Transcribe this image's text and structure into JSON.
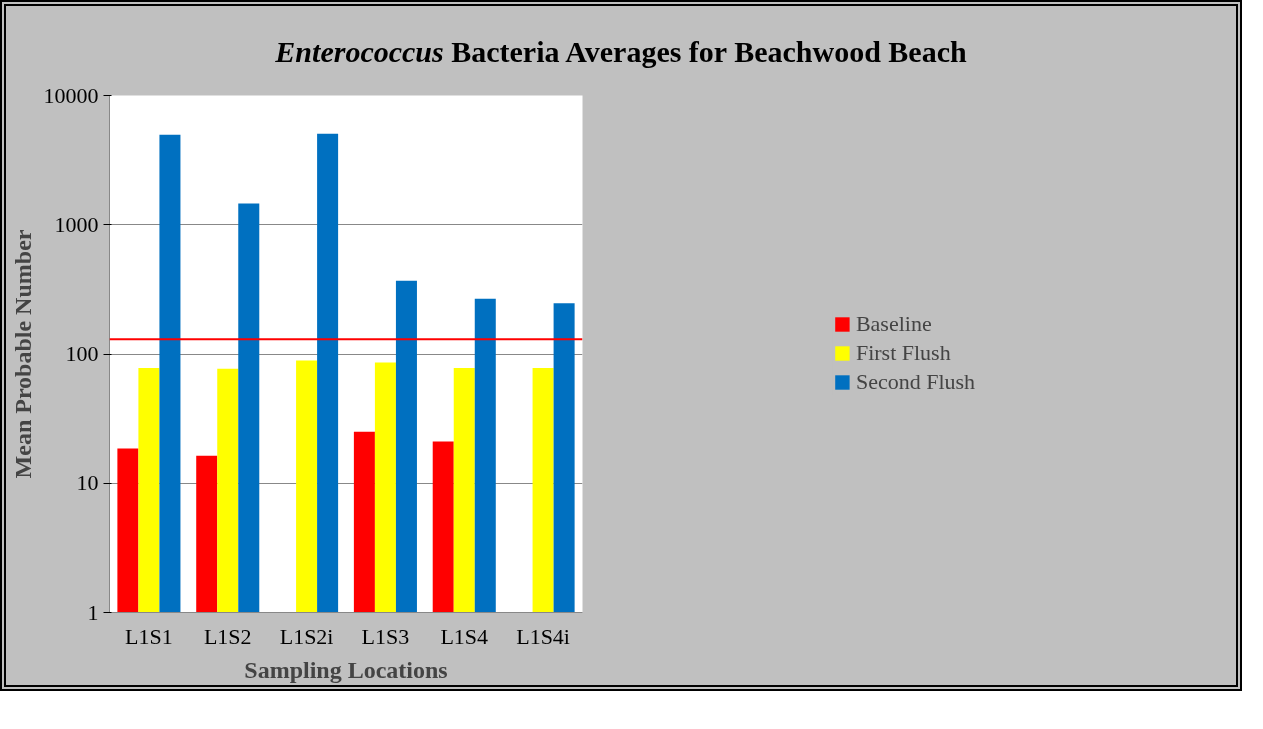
{
  "chart_data": {
    "type": "bar",
    "title": "Enterococcus Bacteria Averages for Beachwood Beach",
    "xlabel": "Sampling Locations",
    "ylabel": "Mean Probable Number",
    "categories": [
      "L1S1",
      "L1S2",
      "L1S2i",
      "L1S3",
      "L1S4",
      "L1S4i"
    ],
    "series": [
      {
        "name": "Baseline",
        "color": "#ff0000",
        "values": [
          18.6,
          16.3,
          null,
          25,
          21,
          null
        ]
      },
      {
        "name": "First Flush",
        "color": "#ffff00",
        "values": [
          78,
          77,
          89,
          86,
          78,
          78
        ]
      },
      {
        "name": "Second Flush",
        "color": "#0070c0",
        "values": [
          4970,
          1460,
          5070,
          368,
          267,
          247
        ]
      }
    ],
    "log": "y",
    "ylim": [
      1,
      10000
    ],
    "yticks": [
      1,
      10,
      100,
      1000,
      10000
    ],
    "grid": "y",
    "legend": "right",
    "ref_lines": [
      {
        "axis": "y",
        "value": 130,
        "color": "#ff0000"
      }
    ]
  }
}
